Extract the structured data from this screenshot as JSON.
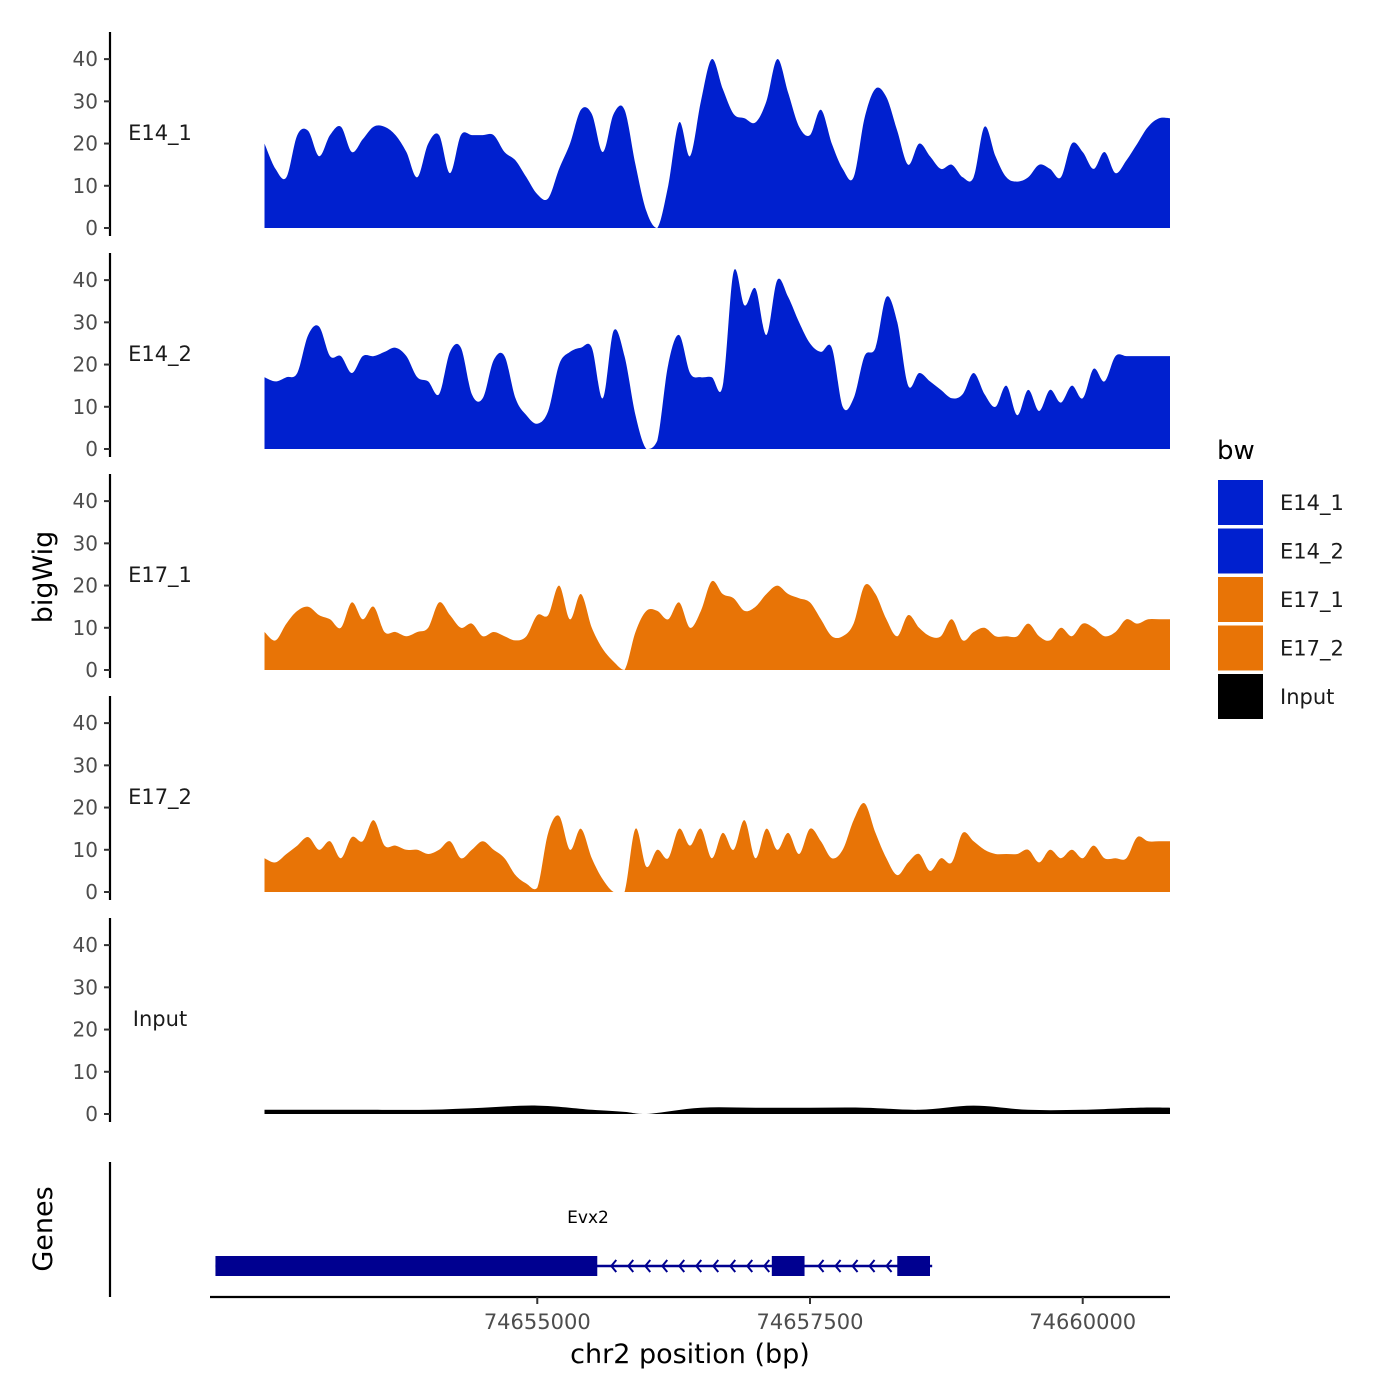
{
  "chart_data": {
    "type": "area",
    "title": "",
    "ylabel": "bigWig",
    "genes_label": "Genes",
    "xlabel": "chr2 position (bp)",
    "xlim": [
      74652000,
      74660800
    ],
    "ylim": [
      0,
      45
    ],
    "grid": false,
    "yticks": [
      0,
      10,
      20,
      30,
      40
    ],
    "ytick_labels": [
      "0",
      "10",
      "20",
      "30",
      "40"
    ],
    "xticks": [
      74655000,
      74657500,
      74660000
    ],
    "xtick_labels": [
      "74655000",
      "74657500",
      "74660000"
    ],
    "legend": {
      "title": "bw",
      "placement": "right",
      "entries": [
        {
          "name": "E14_1",
          "color": "#0020CF"
        },
        {
          "name": "E14_2",
          "color": "#0020CF"
        },
        {
          "name": "E17_1",
          "color": "#E87406"
        },
        {
          "name": "E17_2",
          "color": "#E87406"
        },
        {
          "name": "Input",
          "color": "#000000"
        }
      ]
    },
    "series": [
      {
        "name": "E14_1",
        "color": "#0020CF",
        "x": [
          74652500,
          74652600,
          74652700,
          74652800,
          74652900,
          74653000,
          74653100,
          74653200,
          74653300,
          74653400,
          74653500,
          74653600,
          74653700,
          74653800,
          74653900,
          74654000,
          74654100,
          74654200,
          74654300,
          74654400,
          74654500,
          74654600,
          74654700,
          74654800,
          74654900,
          74655000,
          74655100,
          74655200,
          74655300,
          74655400,
          74655500,
          74655600,
          74655700,
          74655800,
          74655900,
          74656000,
          74656100,
          74656200,
          74656300,
          74656400,
          74656500,
          74656600,
          74656700,
          74656800,
          74656900,
          74657000,
          74657100,
          74657200,
          74657300,
          74657400,
          74657500,
          74657600,
          74657700,
          74657800,
          74657900,
          74658000,
          74658100,
          74658200,
          74658300,
          74658400,
          74658500,
          74658600,
          74658700,
          74658800,
          74658900,
          74659000,
          74659100,
          74659200,
          74659300,
          74659400,
          74659500,
          74659600,
          74659700,
          74659800,
          74659900,
          74660000,
          74660100,
          74660200,
          74660300,
          74660400,
          74660500,
          74660600,
          74660700,
          74660800
        ],
        "values": [
          20,
          14,
          12,
          22,
          23,
          17,
          22,
          24,
          18,
          21,
          24,
          24,
          22,
          18,
          12,
          20,
          22,
          13,
          22,
          22,
          22,
          22,
          18,
          16,
          12,
          8,
          7,
          14,
          20,
          28,
          27,
          18,
          27,
          28,
          15,
          4,
          0,
          10,
          25,
          17,
          30,
          40,
          33,
          27,
          26,
          25,
          30,
          40,
          32,
          24,
          22,
          28,
          20,
          14,
          12,
          26,
          33,
          31,
          23,
          15,
          20,
          17,
          14,
          15,
          12,
          12,
          24,
          17,
          12,
          11,
          12,
          15,
          14,
          12,
          20,
          18,
          14,
          18,
          13,
          16,
          20,
          24,
          26,
          26
        ]
      },
      {
        "name": "E14_2",
        "color": "#0020CF",
        "x": [
          74652500,
          74652600,
          74652700,
          74652800,
          74652900,
          74653000,
          74653100,
          74653200,
          74653300,
          74653400,
          74653500,
          74653600,
          74653700,
          74653800,
          74653900,
          74654000,
          74654100,
          74654200,
          74654300,
          74654400,
          74654500,
          74654600,
          74654700,
          74654800,
          74654900,
          74655000,
          74655100,
          74655200,
          74655300,
          74655400,
          74655500,
          74655600,
          74655700,
          74655800,
          74655900,
          74656000,
          74656100,
          74656200,
          74656300,
          74656400,
          74656500,
          74656600,
          74656700,
          74656800,
          74656900,
          74657000,
          74657100,
          74657200,
          74657300,
          74657400,
          74657500,
          74657600,
          74657700,
          74657800,
          74657900,
          74658000,
          74658100,
          74658200,
          74658300,
          74658400,
          74658500,
          74658600,
          74658700,
          74658800,
          74658900,
          74659000,
          74659100,
          74659200,
          74659300,
          74659400,
          74659500,
          74659600,
          74659700,
          74659800,
          74659900,
          74660000,
          74660100,
          74660200,
          74660300,
          74660400,
          74660500,
          74660600,
          74660700,
          74660800
        ],
        "values": [
          17,
          16,
          17,
          18,
          27,
          29,
          22,
          22,
          18,
          22,
          22,
          23,
          24,
          22,
          17,
          16,
          13,
          23,
          24,
          13,
          12,
          21,
          22,
          12,
          8,
          6,
          9,
          20,
          23,
          24,
          24,
          12,
          28,
          22,
          8,
          0,
          2,
          20,
          27,
          18,
          17,
          17,
          15,
          42,
          34,
          38,
          27,
          40,
          36,
          30,
          25,
          23,
          24,
          10,
          12,
          22,
          24,
          36,
          30,
          15,
          18,
          16,
          14,
          12,
          13,
          18,
          13,
          10,
          15,
          8,
          14,
          9,
          14,
          11,
          15,
          12,
          19,
          16,
          22,
          22,
          22,
          22,
          22,
          22
        ]
      },
      {
        "name": "E17_1",
        "color": "#E87406",
        "x": [
          74652500,
          74652600,
          74652700,
          74652800,
          74652900,
          74653000,
          74653100,
          74653200,
          74653300,
          74653400,
          74653500,
          74653600,
          74653700,
          74653800,
          74653900,
          74654000,
          74654100,
          74654200,
          74654300,
          74654400,
          74654500,
          74654600,
          74654700,
          74654800,
          74654900,
          74655000,
          74655100,
          74655200,
          74655300,
          74655400,
          74655500,
          74655600,
          74655700,
          74655800,
          74655900,
          74656000,
          74656100,
          74656200,
          74656300,
          74656400,
          74656500,
          74656600,
          74656700,
          74656800,
          74656900,
          74657000,
          74657100,
          74657200,
          74657300,
          74657400,
          74657500,
          74657600,
          74657700,
          74657800,
          74657900,
          74658000,
          74658100,
          74658200,
          74658300,
          74658400,
          74658500,
          74658600,
          74658700,
          74658800,
          74658900,
          74659000,
          74659100,
          74659200,
          74659300,
          74659400,
          74659500,
          74659600,
          74659700,
          74659800,
          74659900,
          74660000,
          74660100,
          74660200,
          74660300,
          74660400,
          74660500,
          74660600,
          74660700,
          74660800
        ],
        "values": [
          9,
          7,
          11,
          14,
          15,
          13,
          12,
          10,
          16,
          12,
          15,
          9,
          9,
          8,
          9,
          10,
          16,
          13,
          10,
          11,
          8,
          9,
          8,
          7,
          8,
          13,
          13,
          20,
          12,
          18,
          10,
          5,
          2,
          0,
          9,
          14,
          14,
          12,
          16,
          10,
          14,
          21,
          18,
          17,
          14,
          15,
          18,
          20,
          18,
          17,
          16,
          12,
          8,
          8,
          11,
          20,
          18,
          12,
          8,
          13,
          10,
          8,
          8,
          12,
          7,
          9,
          10,
          8,
          8,
          8,
          11,
          8,
          7,
          10,
          8,
          11,
          10,
          8,
          9,
          12,
          11,
          12,
          12,
          12
        ]
      },
      {
        "name": "E17_2",
        "color": "#E87406",
        "x": [
          74652500,
          74652600,
          74652700,
          74652800,
          74652900,
          74653000,
          74653100,
          74653200,
          74653300,
          74653400,
          74653500,
          74653600,
          74653700,
          74653800,
          74653900,
          74654000,
          74654100,
          74654200,
          74654300,
          74654400,
          74654500,
          74654600,
          74654700,
          74654800,
          74654900,
          74655000,
          74655100,
          74655200,
          74655300,
          74655400,
          74655500,
          74655600,
          74655700,
          74655800,
          74655900,
          74656000,
          74656100,
          74656200,
          74656300,
          74656400,
          74656500,
          74656600,
          74656700,
          74656800,
          74656900,
          74657000,
          74657100,
          74657200,
          74657300,
          74657400,
          74657500,
          74657600,
          74657700,
          74657800,
          74657900,
          74658000,
          74658100,
          74658200,
          74658300,
          74658400,
          74658500,
          74658600,
          74658700,
          74658800,
          74658900,
          74659000,
          74659100,
          74659200,
          74659300,
          74659400,
          74659500,
          74659600,
          74659700,
          74659800,
          74659900,
          74660000,
          74660100,
          74660200,
          74660300,
          74660400,
          74660500,
          74660600,
          74660700,
          74660800
        ],
        "values": [
          8,
          7,
          9,
          11,
          13,
          10,
          12,
          8,
          13,
          12,
          17,
          11,
          11,
          10,
          10,
          9,
          10,
          12,
          8,
          10,
          12,
          10,
          8,
          4,
          2,
          1,
          14,
          18,
          10,
          15,
          8,
          3,
          0,
          0,
          15,
          6,
          10,
          8,
          15,
          11,
          15,
          8,
          14,
          10,
          17,
          8,
          15,
          10,
          14,
          9,
          15,
          12,
          8,
          10,
          17,
          21,
          14,
          8,
          4,
          7,
          9,
          5,
          8,
          7,
          14,
          12,
          10,
          9,
          9,
          9,
          10,
          7,
          10,
          8,
          10,
          8,
          11,
          8,
          8,
          8,
          13,
          12,
          12,
          12
        ]
      },
      {
        "name": "Input",
        "color": "#000000",
        "x": [
          74652500,
          74653000,
          74653500,
          74654000,
          74654500,
          74655000,
          74655500,
          74655800,
          74656000,
          74656500,
          74657000,
          74657500,
          74658000,
          74658500,
          74659000,
          74659500,
          74660000,
          74660500,
          74660800
        ],
        "values": [
          1,
          1,
          1,
          1,
          1.5,
          2,
          1,
          0.5,
          0,
          1.5,
          1.5,
          1.5,
          1.5,
          1,
          2,
          1,
          1,
          1.5,
          1.5
        ]
      }
    ],
    "gene_track": {
      "gene": "Evx2",
      "color": "#000090",
      "start": 74652050,
      "end": 74658620,
      "exons": [
        {
          "start": 74652050,
          "end": 74655550
        },
        {
          "start": 74657150,
          "end": 74657450
        },
        {
          "start": 74658300,
          "end": 74658600
        }
      ],
      "strand": "-"
    }
  }
}
